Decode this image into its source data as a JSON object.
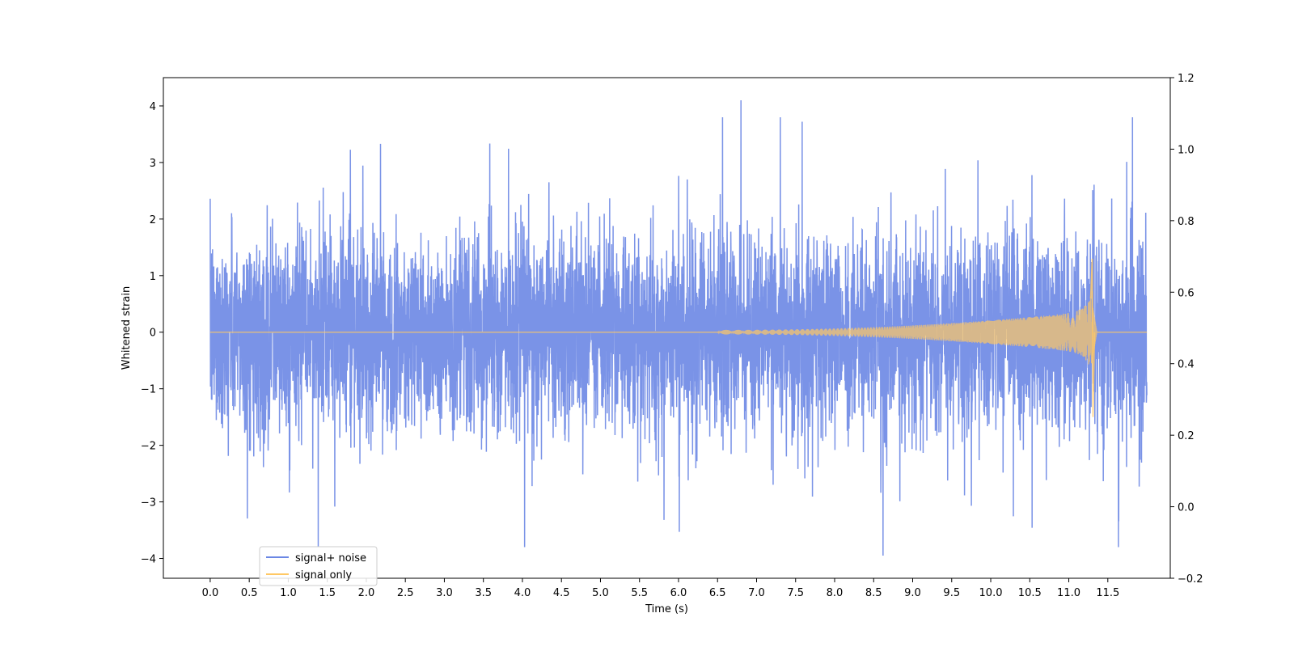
{
  "chart_data": {
    "type": "line",
    "title": "",
    "xlabel": "Time (s)",
    "ylabel": "Whitened strain",
    "xlim": [
      -0.6,
      12.3
    ],
    "ylim": [
      -4.35,
      4.5
    ],
    "y2lim": [
      -0.2,
      1.2
    ],
    "x_ticks": [
      "0.0",
      "0.5",
      "1.0",
      "1.5",
      "2.0",
      "2.5",
      "3.0",
      "3.5",
      "4.0",
      "4.5",
      "5.0",
      "5.5",
      "6.0",
      "6.5",
      "7.0",
      "7.5",
      "8.0",
      "8.5",
      "9.0",
      "9.5",
      "10.0",
      "10.5",
      "11.0",
      "11.5"
    ],
    "y_ticks": [
      "−4",
      "−3",
      "−2",
      "−1",
      "0",
      "1",
      "2",
      "3",
      "4"
    ],
    "y2_ticks": [
      "−0.2",
      "0.0",
      "0.2",
      "0.4",
      "0.6",
      "0.8",
      "1.0",
      "1.2"
    ],
    "grid": false,
    "legend_position": "lower-left",
    "series": [
      {
        "name": "signal+ noise",
        "color": "#6b87e4",
        "x_range": [
          0.0,
          12.0
        ],
        "band_typical": [
          -1.9,
          1.8
        ],
        "peak_max": 4.1,
        "peak_max_x": 6.8,
        "peak_min": -3.95,
        "peak_min_x": 8.62
      },
      {
        "name": "signal only",
        "color": "#ffc864",
        "chirp_start_x": 6.5,
        "merger_x": 11.3,
        "merger_peak": 1.3,
        "merger_trough": -1.5,
        "end_x": 12.0
      }
    ]
  }
}
